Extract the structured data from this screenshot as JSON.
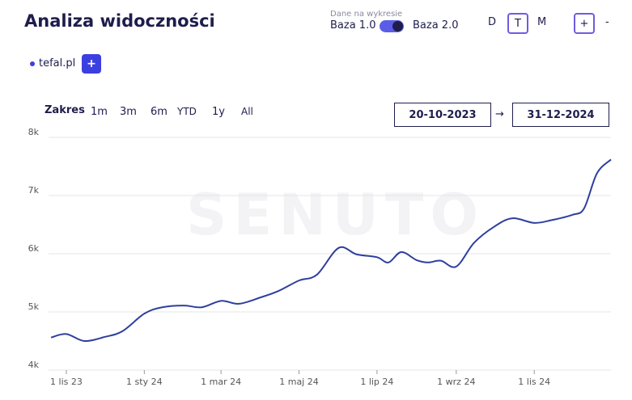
{
  "header": {
    "title": "Analiza widoczności",
    "data_label": "Dane na wykresie",
    "base_left": "Baza 1.0",
    "base_right": "Baza 2.0",
    "granularity": [
      "D",
      "T",
      "M"
    ],
    "zoom": [
      "+",
      "-"
    ]
  },
  "legend": {
    "domain": "tefal.pl",
    "add": "+"
  },
  "range": {
    "label": "Zakres",
    "presets": [
      "1m",
      "3m",
      "6m",
      "YTD",
      "1y",
      "All"
    ],
    "from": "20-10-2023",
    "arrow": "→",
    "to": "31-12-2024"
  },
  "watermark": "SENUTO",
  "chart_data": {
    "type": "line",
    "x": [
      "2023-10-20",
      "2023-11-01",
      "2023-11-15",
      "2023-12-01",
      "2023-12-15",
      "2024-01-01",
      "2024-01-15",
      "2024-02-01",
      "2024-02-15",
      "2024-03-01",
      "2024-03-15",
      "2024-04-01",
      "2024-04-15",
      "2024-05-01",
      "2024-05-15",
      "2024-06-01",
      "2024-06-15",
      "2024-07-01",
      "2024-07-10",
      "2024-07-20",
      "2024-08-01",
      "2024-08-10",
      "2024-08-20",
      "2024-09-01",
      "2024-09-15",
      "2024-10-01",
      "2024-10-15",
      "2024-11-01",
      "2024-11-15",
      "2024-12-01",
      "2024-12-10",
      "2024-12-20",
      "2024-12-31"
    ],
    "series": [
      {
        "name": "tefal.pl",
        "color": "#2f3f9e",
        "values": [
          4560,
          4620,
          4500,
          4570,
          4670,
          4970,
          5080,
          5110,
          5080,
          5190,
          5140,
          5250,
          5360,
          5540,
          5640,
          6100,
          5990,
          5940,
          5850,
          6030,
          5890,
          5850,
          5880,
          5780,
          6190,
          6470,
          6610,
          6530,
          6580,
          6670,
          6780,
          7380,
          7620
        ]
      }
    ],
    "xlim": [
      "2023-10-20",
      "2024-12-31"
    ],
    "xticks": [
      {
        "value": "2023-11-01",
        "label": "1 lis 23"
      },
      {
        "value": "2024-01-01",
        "label": "1 sty 24"
      },
      {
        "value": "2024-03-01",
        "label": "1 mar 24"
      },
      {
        "value": "2024-05-01",
        "label": "1 maj 24"
      },
      {
        "value": "2024-07-01",
        "label": "1 lip 24"
      },
      {
        "value": "2024-09-01",
        "label": "1 wrz 24"
      },
      {
        "value": "2024-11-01",
        "label": "1 lis 24"
      }
    ],
    "ylim": [
      4000,
      8000
    ],
    "yticks": [
      {
        "value": 4000,
        "label": "4k"
      },
      {
        "value": 5000,
        "label": "5k"
      },
      {
        "value": 6000,
        "label": "6k"
      },
      {
        "value": 7000,
        "label": "7k"
      },
      {
        "value": 8000,
        "label": "8k"
      }
    ],
    "grid": true
  }
}
